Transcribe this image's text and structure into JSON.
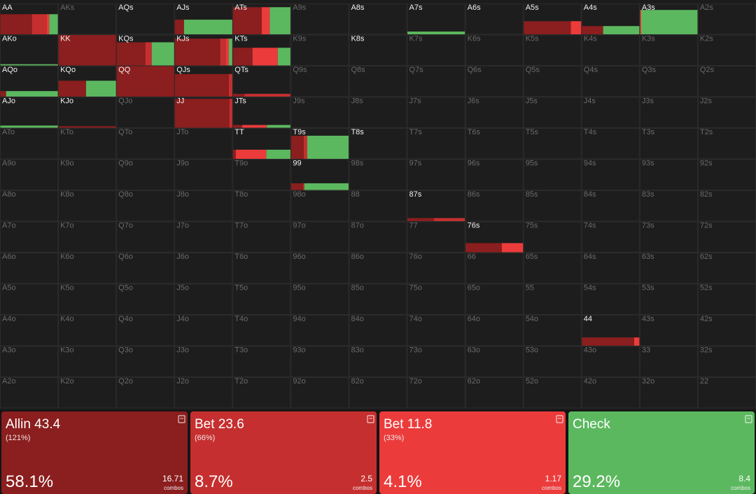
{
  "grid": {
    "rows": [
      [
        {
          "label": "AA",
          "active": true,
          "weight": 0.66,
          "freqs": [
            55,
            26,
            4,
            15
          ]
        },
        {
          "label": "AKs",
          "active": false
        },
        {
          "label": "AQs",
          "active": true
        },
        {
          "label": "AJs",
          "active": true,
          "weight": 0.48,
          "freqs": [
            16,
            0,
            0,
            84
          ]
        },
        {
          "label": "ATs",
          "active": true,
          "weight": 0.89,
          "freqs": [
            50,
            0,
            14,
            36
          ]
        },
        {
          "label": "A9s",
          "active": false
        },
        {
          "label": "A8s",
          "active": true
        },
        {
          "label": "A7s",
          "active": true,
          "weight": 0.09,
          "freqs": [
            0,
            0,
            0,
            100
          ]
        },
        {
          "label": "A6s",
          "active": true
        },
        {
          "label": "A5s",
          "active": true,
          "weight": 0.43,
          "freqs": [
            82,
            0,
            18,
            0
          ]
        },
        {
          "label": "A4s",
          "active": true,
          "weight": 0.27,
          "freqs": [
            37,
            0,
            0,
            63
          ]
        },
        {
          "label": "A3s",
          "active": true,
          "weight": 0.8,
          "freqs": [
            0,
            0,
            2,
            98
          ]
        },
        {
          "label": "A2s",
          "active": false
        }
      ],
      [
        {
          "label": "AKo",
          "active": true,
          "weight": 0.04,
          "freqs": [
            0,
            0,
            0,
            100
          ]
        },
        {
          "label": "KK",
          "active": true,
          "weight": 1,
          "freqs": [
            100,
            0,
            0,
            0
          ]
        },
        {
          "label": "KQs",
          "active": true,
          "weight": 0.76,
          "freqs": [
            50,
            11,
            0,
            39
          ]
        },
        {
          "label": "KJs",
          "active": true,
          "weight": 0.88,
          "freqs": [
            79,
            10,
            5,
            6
          ]
        },
        {
          "label": "KTs",
          "active": true,
          "weight": 0.58,
          "freqs": [
            34,
            0,
            44,
            22
          ]
        },
        {
          "label": "K9s",
          "active": false
        },
        {
          "label": "K8s",
          "active": true
        },
        {
          "label": "K7s",
          "active": false
        },
        {
          "label": "K6s",
          "active": false
        },
        {
          "label": "K5s",
          "active": false
        },
        {
          "label": "K4s",
          "active": false
        },
        {
          "label": "K3s",
          "active": false
        },
        {
          "label": "K2s",
          "active": false
        }
      ],
      [
        {
          "label": "AQo",
          "active": true,
          "weight": 0.18,
          "freqs": [
            10,
            0,
            0,
            90
          ]
        },
        {
          "label": "KQo",
          "active": true,
          "weight": 0.52,
          "freqs": [
            48,
            0,
            0,
            52
          ]
        },
        {
          "label": "QQ",
          "active": true,
          "weight": 1,
          "freqs": [
            100,
            0,
            0,
            0
          ]
        },
        {
          "label": "QJs",
          "active": true,
          "weight": 0.74,
          "freqs": [
            94,
            6,
            0,
            0
          ]
        },
        {
          "label": "QTs",
          "active": true,
          "weight": 0.09,
          "freqs": [
            20,
            80,
            0,
            0
          ]
        },
        {
          "label": "Q9s",
          "active": false
        },
        {
          "label": "Q8s",
          "active": false
        },
        {
          "label": "Q7s",
          "active": false
        },
        {
          "label": "Q6s",
          "active": false
        },
        {
          "label": "Q5s",
          "active": false
        },
        {
          "label": "Q4s",
          "active": false
        },
        {
          "label": "Q3s",
          "active": false
        },
        {
          "label": "Q2s",
          "active": false
        }
      ],
      [
        {
          "label": "AJo",
          "active": true,
          "weight": 0.07,
          "freqs": [
            0,
            0,
            0,
            100
          ]
        },
        {
          "label": "KJo",
          "active": true,
          "weight": 0.05,
          "freqs": [
            100,
            0,
            0,
            0
          ]
        },
        {
          "label": "QJo",
          "active": false
        },
        {
          "label": "JJ",
          "active": true,
          "weight": 0.95,
          "freqs": [
            95,
            5,
            0,
            0
          ]
        },
        {
          "label": "JTs",
          "active": true,
          "weight": 0.09,
          "freqs": [
            16,
            0,
            43,
            41
          ]
        },
        {
          "label": "J9s",
          "active": false
        },
        {
          "label": "J8s",
          "active": false
        },
        {
          "label": "J7s",
          "active": false
        },
        {
          "label": "J6s",
          "active": false
        },
        {
          "label": "J5s",
          "active": false
        },
        {
          "label": "J4s",
          "active": false
        },
        {
          "label": "J3s",
          "active": false
        },
        {
          "label": "J2s",
          "active": false
        }
      ],
      [
        {
          "label": "ATo",
          "active": false
        },
        {
          "label": "KTo",
          "active": false
        },
        {
          "label": "QTo",
          "active": false
        },
        {
          "label": "JTo",
          "active": false
        },
        {
          "label": "TT",
          "active": true,
          "weight": 0.3,
          "freqs": [
            5,
            0,
            53,
            42
          ]
        },
        {
          "label": "T9s",
          "active": true,
          "weight": 0.76,
          "freqs": [
            22,
            6,
            0,
            72
          ]
        },
        {
          "label": "T8s",
          "active": true
        },
        {
          "label": "T7s",
          "active": false
        },
        {
          "label": "T6s",
          "active": false
        },
        {
          "label": "T5s",
          "active": false
        },
        {
          "label": "T4s",
          "active": false
        },
        {
          "label": "T3s",
          "active": false
        },
        {
          "label": "T2s",
          "active": false
        }
      ],
      [
        {
          "label": "A9o",
          "active": false
        },
        {
          "label": "K9o",
          "active": false
        },
        {
          "label": "Q9o",
          "active": false
        },
        {
          "label": "J9o",
          "active": false
        },
        {
          "label": "T9o",
          "active": false
        },
        {
          "label": "99",
          "active": true,
          "weight": 0.22,
          "freqs": [
            21,
            2,
            0,
            77
          ]
        },
        {
          "label": "98s",
          "active": false
        },
        {
          "label": "97s",
          "active": false
        },
        {
          "label": "96s",
          "active": false
        },
        {
          "label": "95s",
          "active": false
        },
        {
          "label": "94s",
          "active": false
        },
        {
          "label": "93s",
          "active": false
        },
        {
          "label": "92s",
          "active": false
        }
      ],
      [
        {
          "label": "A8o",
          "active": false
        },
        {
          "label": "K8o",
          "active": false
        },
        {
          "label": "Q8o",
          "active": false
        },
        {
          "label": "J8o",
          "active": false
        },
        {
          "label": "T8o",
          "active": false
        },
        {
          "label": "98o",
          "active": false
        },
        {
          "label": "88",
          "active": false
        },
        {
          "label": "87s",
          "active": true,
          "weight": 0.1,
          "freqs": [
            46,
            54,
            0,
            0
          ]
        },
        {
          "label": "86s",
          "active": false
        },
        {
          "label": "85s",
          "active": false
        },
        {
          "label": "84s",
          "active": false
        },
        {
          "label": "83s",
          "active": false
        },
        {
          "label": "82s",
          "active": false
        }
      ],
      [
        {
          "label": "A7o",
          "active": false
        },
        {
          "label": "K7o",
          "active": false
        },
        {
          "label": "Q7o",
          "active": false
        },
        {
          "label": "J7o",
          "active": false
        },
        {
          "label": "T7o",
          "active": false
        },
        {
          "label": "97o",
          "active": false
        },
        {
          "label": "87o",
          "active": false
        },
        {
          "label": "77",
          "active": false
        },
        {
          "label": "76s",
          "active": true,
          "weight": 0.3,
          "freqs": [
            63,
            0,
            37,
            0
          ]
        },
        {
          "label": "75s",
          "active": false
        },
        {
          "label": "74s",
          "active": false
        },
        {
          "label": "73s",
          "active": false
        },
        {
          "label": "72s",
          "active": false
        }
      ],
      [
        {
          "label": "A6o",
          "active": false
        },
        {
          "label": "K6o",
          "active": false
        },
        {
          "label": "Q6o",
          "active": false
        },
        {
          "label": "J6o",
          "active": false
        },
        {
          "label": "T6o",
          "active": false
        },
        {
          "label": "96o",
          "active": false
        },
        {
          "label": "86o",
          "active": false
        },
        {
          "label": "76o",
          "active": false
        },
        {
          "label": "66",
          "active": false
        },
        {
          "label": "65s",
          "active": false
        },
        {
          "label": "64s",
          "active": false
        },
        {
          "label": "63s",
          "active": false
        },
        {
          "label": "62s",
          "active": false
        }
      ],
      [
        {
          "label": "A5o",
          "active": false
        },
        {
          "label": "K5o",
          "active": false
        },
        {
          "label": "Q5o",
          "active": false
        },
        {
          "label": "J5o",
          "active": false
        },
        {
          "label": "T5o",
          "active": false
        },
        {
          "label": "95o",
          "active": false
        },
        {
          "label": "85o",
          "active": false
        },
        {
          "label": "75o",
          "active": false
        },
        {
          "label": "65o",
          "active": false
        },
        {
          "label": "55",
          "active": false
        },
        {
          "label": "54s",
          "active": false
        },
        {
          "label": "53s",
          "active": false
        },
        {
          "label": "52s",
          "active": false
        }
      ],
      [
        {
          "label": "A4o",
          "active": false
        },
        {
          "label": "K4o",
          "active": false
        },
        {
          "label": "Q4o",
          "active": false
        },
        {
          "label": "J4o",
          "active": false
        },
        {
          "label": "T4o",
          "active": false
        },
        {
          "label": "94o",
          "active": false
        },
        {
          "label": "84o",
          "active": false
        },
        {
          "label": "74o",
          "active": false
        },
        {
          "label": "64o",
          "active": false
        },
        {
          "label": "54o",
          "active": false
        },
        {
          "label": "44",
          "active": true,
          "weight": 0.27,
          "freqs": [
            91,
            0,
            9,
            0
          ]
        },
        {
          "label": "43s",
          "active": false
        },
        {
          "label": "42s",
          "active": false
        }
      ],
      [
        {
          "label": "A3o",
          "active": false
        },
        {
          "label": "K3o",
          "active": false
        },
        {
          "label": "Q3o",
          "active": false
        },
        {
          "label": "J3o",
          "active": false
        },
        {
          "label": "T3o",
          "active": false
        },
        {
          "label": "93o",
          "active": false
        },
        {
          "label": "83o",
          "active": false
        },
        {
          "label": "73o",
          "active": false
        },
        {
          "label": "63o",
          "active": false
        },
        {
          "label": "53o",
          "active": false
        },
        {
          "label": "43o",
          "active": false
        },
        {
          "label": "33",
          "active": false
        },
        {
          "label": "32s",
          "active": false
        }
      ],
      [
        {
          "label": "A2o",
          "active": false
        },
        {
          "label": "K2o",
          "active": false
        },
        {
          "label": "Q2o",
          "active": false
        },
        {
          "label": "J2o",
          "active": false
        },
        {
          "label": "T2o",
          "active": false
        },
        {
          "label": "92o",
          "active": false
        },
        {
          "label": "82o",
          "active": false
        },
        {
          "label": "72o",
          "active": false
        },
        {
          "label": "62o",
          "active": false
        },
        {
          "label": "52o",
          "active": false
        },
        {
          "label": "42o",
          "active": false
        },
        {
          "label": "32o",
          "active": false
        },
        {
          "label": "22",
          "active": false
        }
      ]
    ]
  },
  "actions": [
    {
      "name": "Allin 43.4",
      "detail": "(121%)",
      "color": "#8b1e1e",
      "percent": "58.1%",
      "combos": "16.71"
    },
    {
      "name": "Bet 23.6",
      "detail": "(66%)",
      "color": "#c62f2f",
      "percent": "8.7%",
      "combos": "2.5"
    },
    {
      "name": "Bet 11.8",
      "detail": "(33%)",
      "color": "#ec3b3b",
      "percent": "4.1%",
      "combos": "1.17"
    },
    {
      "name": "Check",
      "color": "#5cb85f",
      "percent": "29.2%",
      "combos": "8.4"
    }
  ],
  "combos_label": "combos"
}
